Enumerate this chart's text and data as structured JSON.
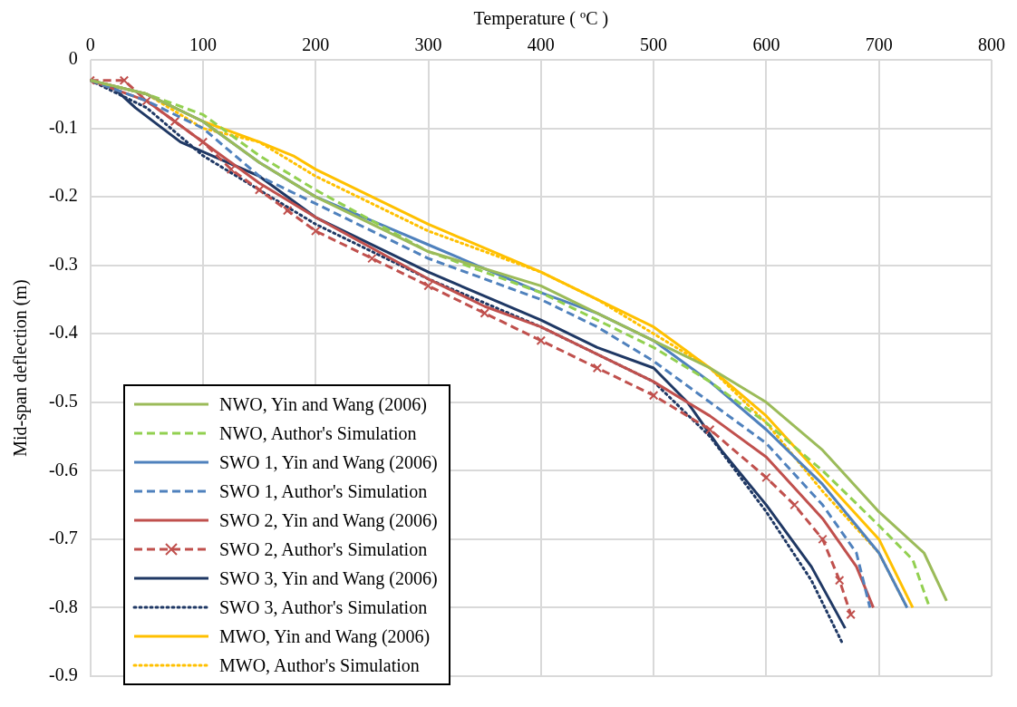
{
  "chart_data": {
    "type": "line",
    "xlabel": "Temperature ( ºC )",
    "ylabel": "Mid-span deflection (m)",
    "xlim": [
      0,
      800
    ],
    "xticks": [
      0,
      100,
      200,
      300,
      400,
      500,
      600,
      700,
      800
    ],
    "ylim": [
      -0.9,
      0
    ],
    "yticks": [
      0,
      -0.1,
      -0.2,
      -0.3,
      -0.4,
      -0.5,
      -0.6,
      -0.7,
      -0.8,
      -0.9
    ],
    "grid": true,
    "legend": "bottom left",
    "marker": "none",
    "series": [
      {
        "name": "NWO, Yin and Wang (2006)",
        "color": "#9bbb59",
        "line_style": "solid",
        "x": [
          0,
          50,
          100,
          150,
          200,
          300,
          400,
          450,
          500,
          550,
          600,
          650,
          700,
          740,
          760
        ],
        "values": [
          -0.03,
          -0.05,
          -0.09,
          -0.15,
          -0.2,
          -0.28,
          -0.33,
          -0.37,
          -0.41,
          -0.45,
          -0.5,
          -0.57,
          -0.66,
          -0.72,
          -0.79
        ]
      },
      {
        "name": "NWO, Author's Simulation",
        "color": "#92d050",
        "line_style": "dashed",
        "x": [
          0,
          50,
          100,
          150,
          200,
          300,
          400,
          450,
          500,
          550,
          600,
          650,
          700,
          730,
          745
        ],
        "values": [
          -0.03,
          -0.05,
          -0.08,
          -0.14,
          -0.19,
          -0.28,
          -0.34,
          -0.38,
          -0.42,
          -0.47,
          -0.53,
          -0.6,
          -0.68,
          -0.73,
          -0.8
        ]
      },
      {
        "name": "SWO 1, Yin and Wang (2006)",
        "color": "#4f81bd",
        "line_style": "solid",
        "x": [
          0,
          50,
          100,
          150,
          200,
          300,
          400,
          450,
          500,
          550,
          600,
          650,
          700,
          725
        ],
        "values": [
          -0.03,
          -0.05,
          -0.09,
          -0.15,
          -0.2,
          -0.27,
          -0.34,
          -0.37,
          -0.41,
          -0.47,
          -0.54,
          -0.62,
          -0.72,
          -0.8
        ]
      },
      {
        "name": "SWO 1, Author's Simulation",
        "color": "#4f81bd",
        "line_style": "dashed",
        "x": [
          0,
          50,
          100,
          150,
          200,
          300,
          400,
          450,
          500,
          550,
          600,
          650,
          680,
          692
        ],
        "values": [
          -0.03,
          -0.06,
          -0.1,
          -0.17,
          -0.21,
          -0.29,
          -0.35,
          -0.39,
          -0.44,
          -0.5,
          -0.56,
          -0.65,
          -0.72,
          -0.8
        ]
      },
      {
        "name": "SWO 2, Yin and Wang (2006)",
        "color": "#c0504d",
        "line_style": "solid",
        "x": [
          0,
          50,
          100,
          150,
          200,
          300,
          350,
          400,
          450,
          500,
          550,
          600,
          650,
          680,
          695
        ],
        "values": [
          -0.03,
          -0.06,
          -0.12,
          -0.18,
          -0.23,
          -0.32,
          -0.36,
          -0.39,
          -0.43,
          -0.47,
          -0.52,
          -0.58,
          -0.67,
          -0.74,
          -0.8
        ]
      },
      {
        "name": "SWO 2, Author's Simulation",
        "color": "#c0504d",
        "line_style": "dashed",
        "marker": "cross",
        "x": [
          0,
          30,
          50,
          75,
          100,
          125,
          150,
          175,
          200,
          250,
          300,
          350,
          400,
          450,
          500,
          550,
          600,
          625,
          650,
          665,
          675
        ],
        "values": [
          -0.03,
          -0.03,
          -0.06,
          -0.09,
          -0.12,
          -0.16,
          -0.19,
          -0.22,
          -0.25,
          -0.29,
          -0.33,
          -0.37,
          -0.41,
          -0.45,
          -0.49,
          -0.54,
          -0.61,
          -0.65,
          -0.7,
          -0.76,
          -0.81
        ]
      },
      {
        "name": "SWO 3, Yin and Wang (2006)",
        "color": "#1f3864",
        "line_style": "solid",
        "x": [
          0,
          20,
          40,
          80,
          150,
          200,
          300,
          400,
          450,
          500,
          530,
          560,
          600,
          640,
          670
        ],
        "values": [
          -0.03,
          -0.04,
          -0.07,
          -0.12,
          -0.17,
          -0.23,
          -0.31,
          -0.38,
          -0.42,
          -0.45,
          -0.5,
          -0.57,
          -0.65,
          -0.74,
          -0.83
        ]
      },
      {
        "name": "SWO 3, Author's Simulation",
        "color": "#1f3864",
        "line_style": "dotted",
        "x": [
          0,
          50,
          100,
          150,
          200,
          300,
          400,
          450,
          500,
          550,
          600,
          640,
          667
        ],
        "values": [
          -0.03,
          -0.07,
          -0.14,
          -0.19,
          -0.24,
          -0.32,
          -0.39,
          -0.43,
          -0.47,
          -0.55,
          -0.66,
          -0.76,
          -0.85
        ]
      },
      {
        "name": "MWO, Yin and Wang (2006)",
        "color": "#ffc000",
        "line_style": "solid",
        "x": [
          0,
          50,
          100,
          150,
          180,
          200,
          300,
          400,
          450,
          500,
          550,
          600,
          650,
          700,
          730
        ],
        "values": [
          -0.03,
          -0.05,
          -0.09,
          -0.12,
          -0.14,
          -0.16,
          -0.24,
          -0.31,
          -0.35,
          -0.39,
          -0.45,
          -0.52,
          -0.61,
          -0.7,
          -0.8
        ]
      },
      {
        "name": "MWO, Author's Simulation",
        "color": "#ffc000",
        "line_style": "dotted",
        "x": [
          0,
          50,
          100,
          150,
          200,
          300,
          400,
          450,
          500,
          550,
          600,
          650,
          700,
          725
        ],
        "values": [
          -0.03,
          -0.05,
          -0.1,
          -0.12,
          -0.17,
          -0.25,
          -0.31,
          -0.35,
          -0.4,
          -0.45,
          -0.53,
          -0.63,
          -0.72,
          -0.8
        ]
      }
    ]
  }
}
